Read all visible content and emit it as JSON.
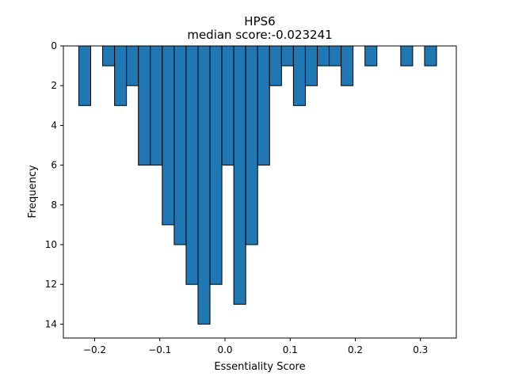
{
  "chart_data": {
    "type": "bar",
    "title": "HPS6",
    "subtitle": "median score:-0.023241",
    "xlabel": "Essentiality Score",
    "ylabel": "Frequency",
    "xlim": [
      -0.248,
      0.355
    ],
    "ylim": [
      0,
      14.7
    ],
    "y_inverted": true,
    "bin_width": 0.0183,
    "bar_color": "#1f77b4",
    "edge_color": "#000000",
    "grid": false,
    "legend": "none",
    "x_ticks": [
      -0.2,
      -0.1,
      0.0,
      0.1,
      0.2,
      0.3
    ],
    "x_tick_labels": [
      "−0.2",
      "−0.1",
      "0.0",
      "0.1",
      "0.2",
      "0.3"
    ],
    "y_ticks": [
      0,
      2,
      4,
      6,
      8,
      10,
      12,
      14
    ],
    "y_tick_labels": [
      "0",
      "2",
      "4",
      "6",
      "8",
      "10",
      "12",
      "14"
    ],
    "bins": [
      {
        "x": -0.2152,
        "count": 3
      },
      {
        "x": -0.1786,
        "count": 1
      },
      {
        "x": -0.1603,
        "count": 3
      },
      {
        "x": -0.142,
        "count": 2
      },
      {
        "x": -0.1237,
        "count": 6
      },
      {
        "x": -0.1054,
        "count": 6
      },
      {
        "x": -0.0871,
        "count": 9
      },
      {
        "x": -0.0688,
        "count": 10
      },
      {
        "x": -0.0505,
        "count": 12
      },
      {
        "x": -0.0322,
        "count": 14
      },
      {
        "x": -0.0139,
        "count": 12
      },
      {
        "x": 0.0044,
        "count": 6
      },
      {
        "x": 0.0227,
        "count": 13
      },
      {
        "x": 0.041,
        "count": 10
      },
      {
        "x": 0.0593,
        "count": 6
      },
      {
        "x": 0.0776,
        "count": 2
      },
      {
        "x": 0.0959,
        "count": 1
      },
      {
        "x": 0.1142,
        "count": 3
      },
      {
        "x": 0.1325,
        "count": 2
      },
      {
        "x": 0.1508,
        "count": 1
      },
      {
        "x": 0.1691,
        "count": 1
      },
      {
        "x": 0.1874,
        "count": 2
      },
      {
        "x": 0.224,
        "count": 1
      },
      {
        "x": 0.2789,
        "count": 1
      },
      {
        "x": 0.3155,
        "count": 1
      }
    ]
  }
}
